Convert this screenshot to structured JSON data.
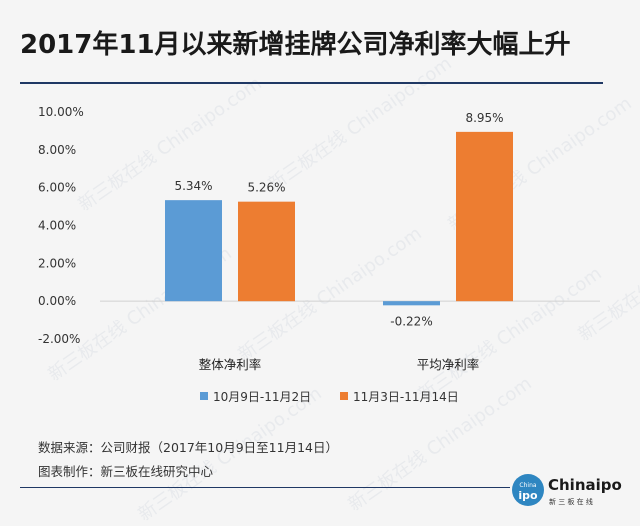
{
  "title": "2017年11月以来新增挂牌公司净利率大幅上升",
  "colors": {
    "series1": "#5b9bd5",
    "series2": "#ed7d31",
    "rule": "#1f3864"
  },
  "chart_data": {
    "type": "bar",
    "categories": [
      "整体净利率",
      "平均净利率"
    ],
    "series": [
      {
        "name": "10月9日-11月2日",
        "values": [
          5.34,
          -0.22
        ],
        "labels": [
          "5.34%",
          "-0.22%"
        ]
      },
      {
        "name": "11月3日-11月14日",
        "values": [
          5.26,
          8.95
        ],
        "labels": [
          "5.26%",
          "8.95%"
        ]
      }
    ],
    "ylim": [
      -2,
      10
    ],
    "yticks": [
      "10.00%",
      "8.00%",
      "6.00%",
      "4.00%",
      "2.00%",
      "0.00%",
      "-2.00%"
    ],
    "ytick_values": [
      10,
      8,
      6,
      4,
      2,
      0,
      -2
    ],
    "legend": "bottom",
    "grid": false
  },
  "footer": {
    "source": "数据来源：公司财报（2017年10月9日至11月14日）",
    "credit": "图表制作：新三板在线研究中心"
  },
  "logo": {
    "small_text": "China",
    "big_text": "Chinaipo",
    "ipo": "ipo",
    "tagline": "新 三 板 在 线"
  },
  "watermark": "新三板在线 Chinaipo.com"
}
